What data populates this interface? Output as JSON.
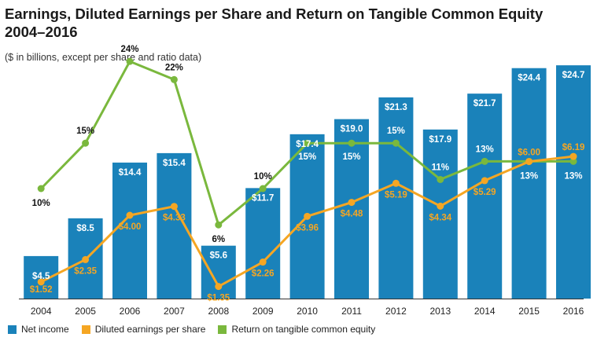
{
  "title_line1": "Earnings, Diluted Earnings per Share and Return on Tangible Common Equity",
  "title_line2": "2004–2016",
  "subtitle": "($ in billions, except per share and ratio data)",
  "colors": {
    "net_income": "#1a82ba",
    "eps": "#f5a623",
    "rotce": "#7ab83d",
    "axis": "#333333",
    "bar_label": "#ffffff"
  },
  "legend": [
    {
      "key": "net_income",
      "label": "Net income"
    },
    {
      "key": "eps",
      "label": "Diluted earnings per share"
    },
    {
      "key": "rotce",
      "label": "Return on tangible common equity"
    }
  ],
  "chart_data": {
    "type": "bar",
    "categories": [
      "2004",
      "2005",
      "2006",
      "2007",
      "2008",
      "2009",
      "2010",
      "2011",
      "2012",
      "2013",
      "2014",
      "2015",
      "2016"
    ],
    "series": [
      {
        "name": "Net income",
        "type": "bar",
        "values": [
          4.5,
          8.5,
          14.4,
          15.4,
          5.6,
          11.7,
          17.4,
          19.0,
          21.3,
          17.9,
          21.7,
          24.4,
          24.7
        ],
        "labels": [
          "$4.5",
          "$8.5",
          "$14.4",
          "$15.4",
          "$5.6",
          "$11.7",
          "$17.4",
          "$19.0",
          "$21.3",
          "$17.9",
          "$21.7",
          "$24.4",
          "$24.7"
        ]
      },
      {
        "name": "Diluted earnings per share",
        "type": "line",
        "values": [
          1.52,
          2.35,
          4.0,
          4.33,
          1.35,
          2.26,
          3.96,
          4.48,
          5.19,
          4.34,
          5.29,
          6.0,
          6.19
        ],
        "labels": [
          "$1.52",
          "$2.35",
          "$4.00",
          "$4.33",
          "$1.35",
          "$2.26",
          "$3.96",
          "$4.48",
          "$5.19",
          "$4.34",
          "$5.29",
          "$6.00",
          "$6.19"
        ]
      },
      {
        "name": "Return on tangible common equity",
        "type": "line",
        "values": [
          10,
          15,
          24,
          22,
          6,
          10,
          15,
          15,
          15,
          11,
          13,
          13,
          13
        ],
        "labels": [
          "10%",
          "15%",
          "24%",
          "22%",
          "6%",
          "10%",
          "15%",
          "15%",
          "15%",
          "11%",
          "13%",
          "13%",
          "13%"
        ]
      }
    ]
  }
}
